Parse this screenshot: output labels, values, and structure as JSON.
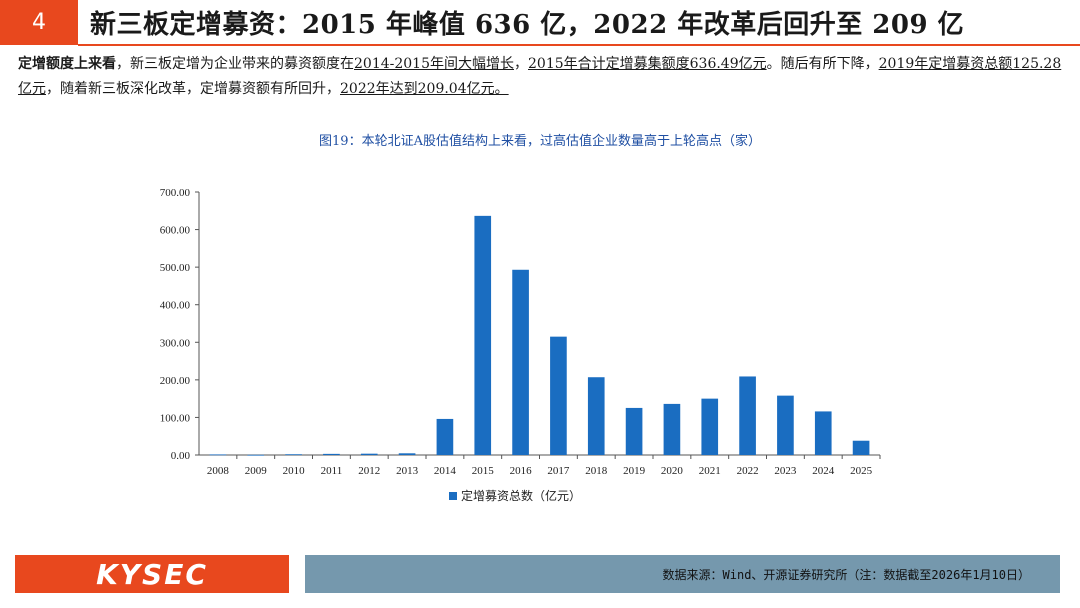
{
  "header": {
    "section_number": "4",
    "title": "新三板定增募资：2015 年峰值 636 亿，2022 年改革后回升至 209 亿"
  },
  "paragraph": {
    "lead": "定增额度上来看",
    "t1": "，新三板定增为企业带来的募资额度在",
    "u1": "2014-2015年间大幅增长",
    "t2": "，",
    "u2": "2015年合计定增募集额度636.49亿元",
    "t3": "。随后有所下降，",
    "u3": "2019年定增募资总额125.28亿元",
    "t4": "，随着新三板深化改革，定增募资额有所回升，",
    "u4": "2022年达到209.04亿元。"
  },
  "figure_title": "图19：本轮北证A股估值结构上来看，过高估值企业数量高于上轮高点（家）",
  "chart_data": {
    "type": "bar",
    "categories": [
      "2008",
      "2009",
      "2010",
      "2011",
      "2012",
      "2013",
      "2014",
      "2015",
      "2016",
      "2017",
      "2018",
      "2019",
      "2020",
      "2021",
      "2022",
      "2023",
      "2024",
      "2025"
    ],
    "series": [
      {
        "name": "定增募资总数（亿元）",
        "color": "#1a6dc1",
        "values": [
          1.5,
          0.5,
          2,
          3,
          3.5,
          4.5,
          96,
          636.49,
          493,
          315,
          207,
          125.28,
          136,
          150,
          209.04,
          158,
          116,
          38
        ]
      }
    ],
    "y_tick_labels": [
      "0.00",
      "100.00",
      "200.00",
      "300.00",
      "400.00",
      "500.00",
      "600.00",
      "700.00"
    ],
    "ylim": [
      0,
      700
    ],
    "grid": false,
    "legend_position": "bottom"
  },
  "footer": {
    "logo_text": "KYSEC",
    "source": "数据来源：Wind、开源证券研究所（注：数据截至2026年1月10日）"
  }
}
